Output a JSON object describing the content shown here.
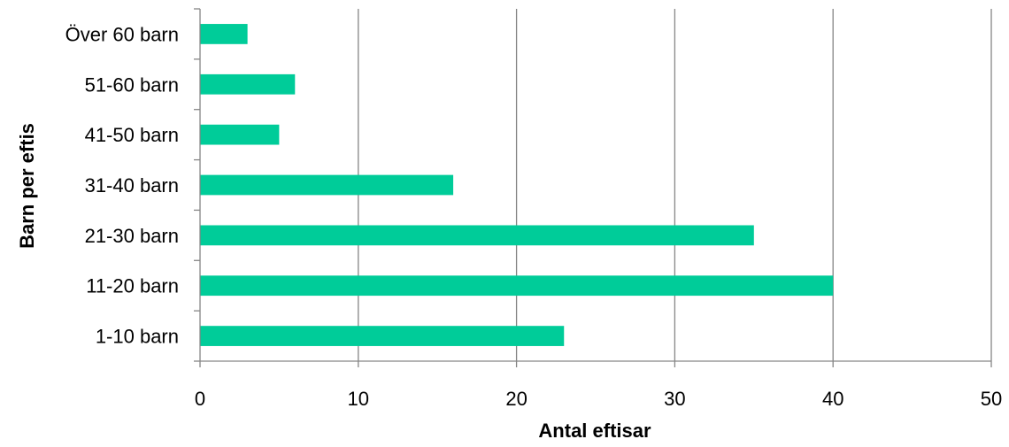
{
  "chart_data": {
    "type": "bar",
    "orientation": "horizontal",
    "categories": [
      "1-10 barn",
      "11-20 barn",
      "21-30 barn",
      "31-40 barn",
      "41-50 barn",
      "51-60 barn",
      "Över 60 barn"
    ],
    "values": [
      23,
      40,
      35,
      16,
      5,
      6,
      3
    ],
    "xlabel": "Antal eftisar",
    "ylabel": "Barn per eftis",
    "xlim": [
      0,
      50
    ],
    "xticks": [
      "0",
      "10",
      "20",
      "30",
      "40",
      "50"
    ],
    "grid": "vertical",
    "legend": "none",
    "colors": {
      "bar": "#00CC99",
      "grid": "#868686",
      "axis": "#868686"
    }
  }
}
